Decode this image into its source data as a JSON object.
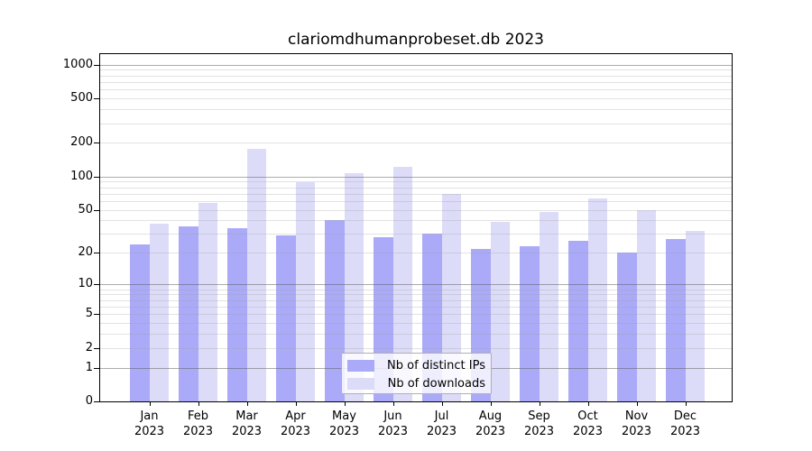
{
  "title": "clariomdhumanprobeset.db 2023",
  "chart_data": {
    "type": "bar",
    "title": "clariomdhumanprobeset.db 2023",
    "categories": [
      "Jan",
      "Feb",
      "Mar",
      "Apr",
      "May",
      "Jun",
      "Jul",
      "Aug",
      "Sep",
      "Oct",
      "Nov",
      "Dec"
    ],
    "x_year_label": "2023",
    "series": [
      {
        "name": "Nb of distinct IPs",
        "color": "#aaaaf8",
        "values": [
          24,
          35,
          34,
          29,
          40,
          28,
          30,
          22,
          23,
          26,
          20,
          27
        ]
      },
      {
        "name": "Nb of downloads",
        "color": "#dcdcf8",
        "values": [
          37,
          58,
          178,
          89,
          106,
          121,
          70,
          39,
          48,
          63,
          50,
          32
        ]
      }
    ],
    "xlabel": "",
    "ylabel": "",
    "y_axis": {
      "scale": "log10(value+1)",
      "tick_values": [
        0,
        1,
        2,
        5,
        10,
        20,
        50,
        100,
        200,
        500,
        1000
      ],
      "major_gridlines": [
        1,
        10,
        100,
        1000
      ],
      "minor_gridlines": [
        2,
        3,
        4,
        5,
        6,
        7,
        8,
        9,
        20,
        30,
        40,
        50,
        60,
        70,
        80,
        90,
        200,
        300,
        400,
        500,
        600,
        700,
        800,
        900
      ],
      "ylim": [
        0,
        1240
      ]
    },
    "grid": true,
    "legend_position": "lower center"
  },
  "colors": {
    "background": "#ffffff",
    "axis": "#000000",
    "major_grid": "rgba(90,90,90,0.5)",
    "minor_grid": "rgba(160,160,160,0.3)",
    "legend_border": "#b0b0b0"
  }
}
